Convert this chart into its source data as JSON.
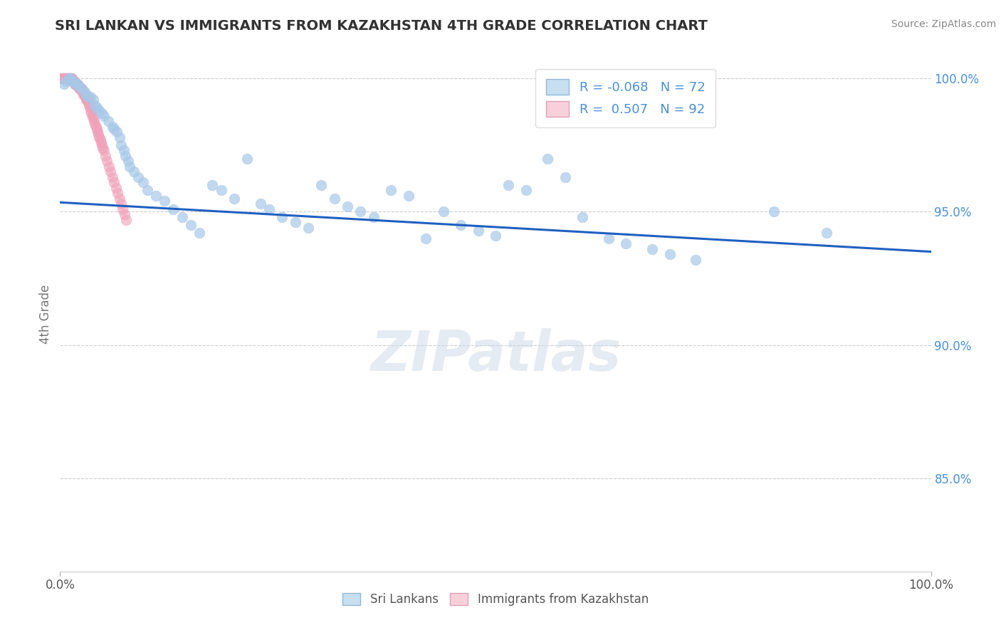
{
  "title": "SRI LANKAN VS IMMIGRANTS FROM KAZAKHSTAN 4TH GRADE CORRELATION CHART",
  "source": "Source: ZipAtlas.com",
  "ylabel": "4th Grade",
  "watermark": "ZIPatlas",
  "legend_blue_r": "-0.068",
  "legend_blue_n": "72",
  "legend_pink_r": "0.507",
  "legend_pink_n": "92",
  "x_min": 0.0,
  "x_max": 1.0,
  "y_min": 0.815,
  "y_max": 1.008,
  "y_ticks": [
    0.85,
    0.9,
    0.95,
    1.0
  ],
  "y_tick_labels": [
    "85.0%",
    "90.0%",
    "95.0%",
    "100.0%"
  ],
  "x_tick_labels": [
    "0.0%",
    "100.0%"
  ],
  "blue_color": "#a8c8e8",
  "pink_color": "#f0a0b8",
  "trendline_color": "#2060c0",
  "blue_scatter": {
    "x": [
      0.005,
      0.007,
      0.01,
      0.012,
      0.015,
      0.018,
      0.02,
      0.022,
      0.025,
      0.028,
      0.03,
      0.032,
      0.035,
      0.038,
      0.04,
      0.042,
      0.045,
      0.048,
      0.05,
      0.055,
      0.06,
      0.062,
      0.065,
      0.068,
      0.07,
      0.073,
      0.075,
      0.078,
      0.08,
      0.085,
      0.09,
      0.095,
      0.1,
      0.11,
      0.12,
      0.13,
      0.14,
      0.15,
      0.16,
      0.175,
      0.185,
      0.2,
      0.215,
      0.23,
      0.24,
      0.255,
      0.27,
      0.285,
      0.3,
      0.315,
      0.33,
      0.345,
      0.36,
      0.38,
      0.4,
      0.42,
      0.44,
      0.46,
      0.48,
      0.5,
      0.515,
      0.535,
      0.56,
      0.58,
      0.6,
      0.63,
      0.65,
      0.68,
      0.7,
      0.73,
      0.82,
      0.88
    ],
    "y": [
      0.998,
      0.999,
      1.0,
      1.0,
      0.999,
      0.998,
      0.998,
      0.997,
      0.996,
      0.995,
      0.994,
      0.993,
      0.993,
      0.992,
      0.99,
      0.989,
      0.988,
      0.987,
      0.986,
      0.984,
      0.982,
      0.981,
      0.98,
      0.978,
      0.975,
      0.973,
      0.971,
      0.969,
      0.967,
      0.965,
      0.963,
      0.961,
      0.958,
      0.956,
      0.954,
      0.951,
      0.948,
      0.945,
      0.942,
      0.96,
      0.958,
      0.955,
      0.97,
      0.953,
      0.951,
      0.948,
      0.946,
      0.944,
      0.96,
      0.955,
      0.952,
      0.95,
      0.948,
      0.958,
      0.956,
      0.94,
      0.95,
      0.945,
      0.943,
      0.941,
      0.96,
      0.958,
      0.97,
      0.963,
      0.948,
      0.94,
      0.938,
      0.936,
      0.934,
      0.932,
      0.95,
      0.942
    ]
  },
  "pink_scatter": {
    "x": [
      0.001,
      0.002,
      0.002,
      0.003,
      0.003,
      0.004,
      0.004,
      0.005,
      0.005,
      0.006,
      0.006,
      0.007,
      0.007,
      0.008,
      0.008,
      0.009,
      0.009,
      0.01,
      0.01,
      0.011,
      0.011,
      0.012,
      0.012,
      0.013,
      0.013,
      0.014,
      0.014,
      0.015,
      0.015,
      0.016,
      0.016,
      0.017,
      0.017,
      0.018,
      0.018,
      0.019,
      0.019,
      0.02,
      0.02,
      0.021,
      0.021,
      0.022,
      0.022,
      0.023,
      0.023,
      0.024,
      0.024,
      0.025,
      0.025,
      0.026,
      0.026,
      0.027,
      0.027,
      0.028,
      0.028,
      0.029,
      0.029,
      0.03,
      0.03,
      0.031,
      0.032,
      0.033,
      0.034,
      0.035,
      0.036,
      0.037,
      0.038,
      0.039,
      0.04,
      0.041,
      0.042,
      0.043,
      0.044,
      0.045,
      0.046,
      0.047,
      0.048,
      0.049,
      0.05,
      0.052,
      0.054,
      0.056,
      0.058,
      0.06,
      0.062,
      0.064,
      0.066,
      0.068,
      0.07,
      0.072,
      0.074,
      0.076
    ],
    "y": [
      1.0,
      1.0,
      1.0,
      1.0,
      1.0,
      1.0,
      1.0,
      1.0,
      1.0,
      1.0,
      1.0,
      1.0,
      1.0,
      1.0,
      1.0,
      1.0,
      1.0,
      1.0,
      1.0,
      1.0,
      1.0,
      1.0,
      1.0,
      1.0,
      1.0,
      1.0,
      1.0,
      0.999,
      0.999,
      0.999,
      0.999,
      0.998,
      0.998,
      0.998,
      0.998,
      0.998,
      0.998,
      0.997,
      0.997,
      0.997,
      0.997,
      0.997,
      0.997,
      0.996,
      0.996,
      0.996,
      0.996,
      0.996,
      0.996,
      0.995,
      0.995,
      0.995,
      0.994,
      0.994,
      0.994,
      0.993,
      0.993,
      0.993,
      0.992,
      0.992,
      0.991,
      0.99,
      0.989,
      0.988,
      0.987,
      0.986,
      0.985,
      0.984,
      0.983,
      0.982,
      0.981,
      0.98,
      0.979,
      0.978,
      0.977,
      0.976,
      0.975,
      0.974,
      0.973,
      0.971,
      0.969,
      0.967,
      0.965,
      0.963,
      0.961,
      0.959,
      0.957,
      0.955,
      0.953,
      0.951,
      0.949,
      0.947
    ]
  },
  "trendline_x": [
    0.0,
    1.0
  ],
  "trendline_y": [
    0.9535,
    0.935
  ],
  "figsize": [
    14.06,
    8.92
  ],
  "dpi": 100,
  "background_color": "#ffffff"
}
